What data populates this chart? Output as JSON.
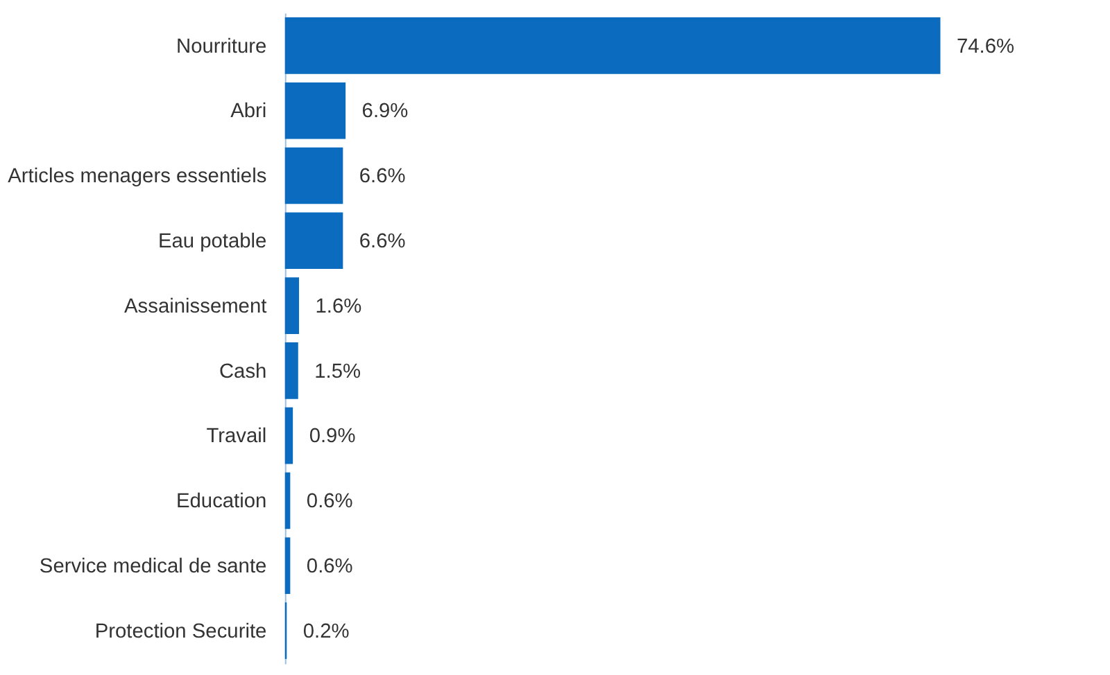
{
  "chart_data": {
    "type": "bar",
    "orientation": "horizontal",
    "categories": [
      "Nourriture",
      "Abri",
      "Articles menagers essentiels",
      "Eau potable",
      "Assainissement",
      "Cash",
      "Travail",
      "Education",
      "Service medical de sante",
      "Protection Securite"
    ],
    "values": [
      74.6,
      6.9,
      6.6,
      6.6,
      1.6,
      1.5,
      0.9,
      0.6,
      0.6,
      0.2
    ],
    "value_labels": [
      "74.6%",
      "6.9%",
      "6.6%",
      "6.6%",
      "1.6%",
      "1.5%",
      "0.9%",
      "0.6%",
      "0.6%",
      "0.2%"
    ],
    "color": "#0b6cbf",
    "tick_labels": "y",
    "grid": false
  }
}
